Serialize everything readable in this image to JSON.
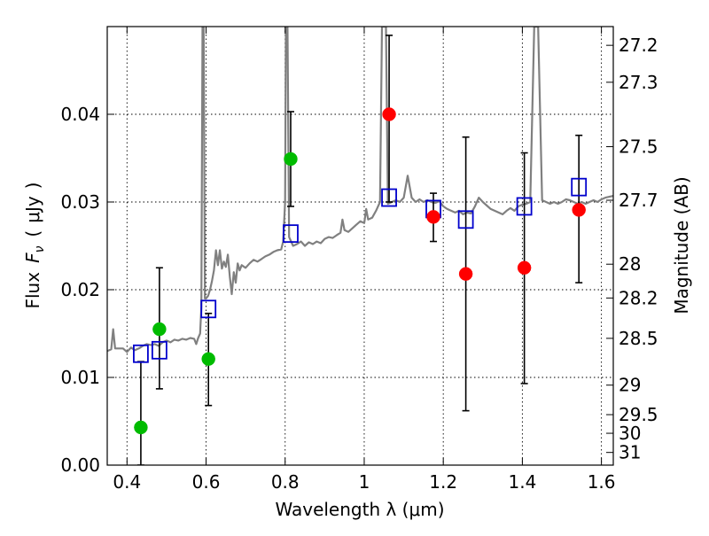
{
  "chart_data": {
    "type": "scatter",
    "xlabel": "Wavelength  λ (μm)",
    "ylabel_parts": {
      "flux": "Flux",
      "fnu": "F",
      "nu": "ν",
      "open": "(",
      "unit": "μJy",
      "close": ")"
    },
    "y2label": "Magnitude (AB)",
    "xlim": [
      0.35,
      1.63
    ],
    "ylim": [
      0.0,
      0.05
    ],
    "xticks": [
      {
        "value": 0.4,
        "label": "0.4"
      },
      {
        "value": 0.6,
        "label": "0.6"
      },
      {
        "value": 0.8,
        "label": "0.8"
      },
      {
        "value": 1.0,
        "label": "1"
      },
      {
        "value": 1.2,
        "label": "1.2"
      },
      {
        "value": 1.4,
        "label": "1.4"
      },
      {
        "value": 1.6,
        "label": "1.6"
      }
    ],
    "yticks": [
      {
        "value": 0.0,
        "label": "0.00"
      },
      {
        "value": 0.01,
        "label": "0.01"
      },
      {
        "value": 0.02,
        "label": "0.02"
      },
      {
        "value": 0.03,
        "label": "0.03"
      },
      {
        "value": 0.04,
        "label": "0.04"
      }
    ],
    "mag_ticks": [
      {
        "value": 27.2,
        "label": "27.2"
      },
      {
        "value": 27.3,
        "label": "27.3"
      },
      {
        "value": 27.5,
        "label": "27.5"
      },
      {
        "value": 27.7,
        "label": "27.7"
      },
      {
        "value": 28.0,
        "label": "28"
      },
      {
        "value": 28.2,
        "label": "28.2"
      },
      {
        "value": 28.5,
        "label": "28.5"
      },
      {
        "value": 29.0,
        "label": "29"
      },
      {
        "value": 29.5,
        "label": "29.5"
      },
      {
        "value": 30.0,
        "label": "30"
      },
      {
        "value": 31.0,
        "label": "31"
      }
    ],
    "series": [
      {
        "name": "model_spectrum",
        "kind": "line",
        "color": "#808080",
        "points": [
          [
            0.35,
            0.013
          ],
          [
            0.36,
            0.0132
          ],
          [
            0.365,
            0.0155
          ],
          [
            0.37,
            0.0133
          ],
          [
            0.39,
            0.0133
          ],
          [
            0.4,
            0.0129
          ],
          [
            0.41,
            0.0134
          ],
          [
            0.42,
            0.0131
          ],
          [
            0.43,
            0.0133
          ],
          [
            0.44,
            0.0136
          ],
          [
            0.45,
            0.0138
          ],
          [
            0.46,
            0.0137
          ],
          [
            0.47,
            0.0138
          ],
          [
            0.48,
            0.0136
          ],
          [
            0.49,
            0.014
          ],
          [
            0.5,
            0.0142
          ],
          [
            0.51,
            0.014
          ],
          [
            0.52,
            0.0143
          ],
          [
            0.53,
            0.0142
          ],
          [
            0.54,
            0.0144
          ],
          [
            0.55,
            0.0143
          ],
          [
            0.56,
            0.0145
          ],
          [
            0.57,
            0.0144
          ],
          [
            0.575,
            0.0138
          ],
          [
            0.58,
            0.0145
          ],
          [
            0.585,
            0.015
          ],
          [
            0.588,
            0.018
          ],
          [
            0.591,
            0.05
          ],
          [
            0.594,
            0.05
          ],
          [
            0.597,
            0.019
          ],
          [
            0.6,
            0.019
          ],
          [
            0.605,
            0.0193
          ],
          [
            0.61,
            0.02
          ],
          [
            0.615,
            0.021
          ],
          [
            0.62,
            0.0222
          ],
          [
            0.625,
            0.0245
          ],
          [
            0.63,
            0.0228
          ],
          [
            0.635,
            0.0245
          ],
          [
            0.64,
            0.0224
          ],
          [
            0.645,
            0.0232
          ],
          [
            0.65,
            0.0226
          ],
          [
            0.655,
            0.024
          ],
          [
            0.66,
            0.0215
          ],
          [
            0.665,
            0.0195
          ],
          [
            0.67,
            0.022
          ],
          [
            0.675,
            0.0208
          ],
          [
            0.68,
            0.023
          ],
          [
            0.685,
            0.0222
          ],
          [
            0.69,
            0.0228
          ],
          [
            0.7,
            0.0225
          ],
          [
            0.71,
            0.023
          ],
          [
            0.72,
            0.0234
          ],
          [
            0.73,
            0.0232
          ],
          [
            0.74,
            0.0235
          ],
          [
            0.75,
            0.0238
          ],
          [
            0.76,
            0.024
          ],
          [
            0.77,
            0.0243
          ],
          [
            0.78,
            0.0245
          ],
          [
            0.79,
            0.0246
          ],
          [
            0.795,
            0.0255
          ],
          [
            0.8,
            0.03
          ],
          [
            0.802,
            0.05
          ],
          [
            0.806,
            0.05
          ],
          [
            0.81,
            0.026
          ],
          [
            0.82,
            0.025
          ],
          [
            0.83,
            0.0252
          ],
          [
            0.84,
            0.0255
          ],
          [
            0.85,
            0.025
          ],
          [
            0.86,
            0.0254
          ],
          [
            0.87,
            0.0252
          ],
          [
            0.88,
            0.0255
          ],
          [
            0.89,
            0.0253
          ],
          [
            0.9,
            0.0258
          ],
          [
            0.91,
            0.026
          ],
          [
            0.92,
            0.0259
          ],
          [
            0.93,
            0.0262
          ],
          [
            0.94,
            0.0265
          ],
          [
            0.945,
            0.028
          ],
          [
            0.95,
            0.0268
          ],
          [
            0.96,
            0.0266
          ],
          [
            0.97,
            0.027
          ],
          [
            0.98,
            0.0274
          ],
          [
            0.99,
            0.0278
          ],
          [
            1.0,
            0.0276
          ],
          [
            1.005,
            0.0292
          ],
          [
            1.01,
            0.028
          ],
          [
            1.02,
            0.0282
          ],
          [
            1.03,
            0.029
          ],
          [
            1.04,
            0.03
          ],
          [
            1.045,
            0.05
          ],
          [
            1.055,
            0.05
          ],
          [
            1.06,
            0.0298
          ],
          [
            1.07,
            0.03
          ],
          [
            1.08,
            0.0302
          ],
          [
            1.09,
            0.03
          ],
          [
            1.1,
            0.0305
          ],
          [
            1.11,
            0.033
          ],
          [
            1.12,
            0.0305
          ],
          [
            1.13,
            0.03
          ],
          [
            1.14,
            0.0303
          ],
          [
            1.15,
            0.03
          ],
          [
            1.16,
            0.0302
          ],
          [
            1.17,
            0.03
          ],
          [
            1.18,
            0.0299
          ],
          [
            1.19,
            0.0301
          ],
          [
            1.2,
            0.0295
          ],
          [
            1.21,
            0.0292
          ],
          [
            1.22,
            0.029
          ],
          [
            1.23,
            0.0288
          ],
          [
            1.24,
            0.029
          ],
          [
            1.25,
            0.0286
          ],
          [
            1.26,
            0.0288
          ],
          [
            1.27,
            0.0287
          ],
          [
            1.28,
            0.0295
          ],
          [
            1.29,
            0.0305
          ],
          [
            1.3,
            0.03
          ],
          [
            1.31,
            0.0296
          ],
          [
            1.32,
            0.0292
          ],
          [
            1.33,
            0.029
          ],
          [
            1.34,
            0.0288
          ],
          [
            1.35,
            0.0286
          ],
          [
            1.36,
            0.029
          ],
          [
            1.37,
            0.0293
          ],
          [
            1.38,
            0.029
          ],
          [
            1.39,
            0.0295
          ],
          [
            1.4,
            0.0297
          ],
          [
            1.41,
            0.0298
          ],
          [
            1.42,
            0.03
          ],
          [
            1.43,
            0.05
          ],
          [
            1.44,
            0.05
          ],
          [
            1.45,
            0.0302
          ],
          [
            1.46,
            0.03
          ],
          [
            1.47,
            0.0298
          ],
          [
            1.48,
            0.03
          ],
          [
            1.49,
            0.0298
          ],
          [
            1.5,
            0.03
          ],
          [
            1.51,
            0.0303
          ],
          [
            1.52,
            0.0302
          ],
          [
            1.53,
            0.03
          ],
          [
            1.54,
            0.0298
          ],
          [
            1.55,
            0.03
          ],
          [
            1.56,
            0.0298
          ],
          [
            1.57,
            0.03
          ],
          [
            1.58,
            0.0302
          ],
          [
            1.59,
            0.03
          ],
          [
            1.6,
            0.0303
          ],
          [
            1.61,
            0.0305
          ],
          [
            1.62,
            0.0306
          ],
          [
            1.63,
            0.0307
          ]
        ]
      },
      {
        "name": "blue_model_squares",
        "kind": "square",
        "color": "#0000cc",
        "points": [
          [
            0.435,
            0.0127
          ],
          [
            0.482,
            0.0131
          ],
          [
            0.606,
            0.0178
          ],
          [
            0.814,
            0.0264
          ],
          [
            1.063,
            0.0305
          ],
          [
            1.175,
            0.0292
          ],
          [
            1.257,
            0.028
          ],
          [
            1.405,
            0.0295
          ],
          [
            1.543,
            0.0317
          ]
        ]
      },
      {
        "name": "green_observed",
        "kind": "circle",
        "color": "#00bb00",
        "points": [
          [
            0.435,
            0.0043
          ],
          [
            0.482,
            0.0155
          ],
          [
            0.606,
            0.0121
          ],
          [
            0.814,
            0.0349
          ]
        ],
        "errors": [
          [
            0.0,
            0.0118
          ],
          [
            0.0087,
            0.0225
          ],
          [
            0.0068,
            0.0173
          ],
          [
            0.0295,
            0.0403
          ]
        ]
      },
      {
        "name": "red_observed",
        "kind": "circle",
        "color": "#ff0000",
        "points": [
          [
            1.063,
            0.04
          ],
          [
            1.175,
            0.0283
          ],
          [
            1.257,
            0.0218
          ],
          [
            1.405,
            0.0225
          ],
          [
            1.543,
            0.0291
          ]
        ],
        "errors": [
          [
            0.03,
            0.049
          ],
          [
            0.0255,
            0.031
          ],
          [
            0.0062,
            0.0374
          ],
          [
            0.0093,
            0.0356
          ],
          [
            0.0208,
            0.0376
          ]
        ]
      }
    ]
  }
}
